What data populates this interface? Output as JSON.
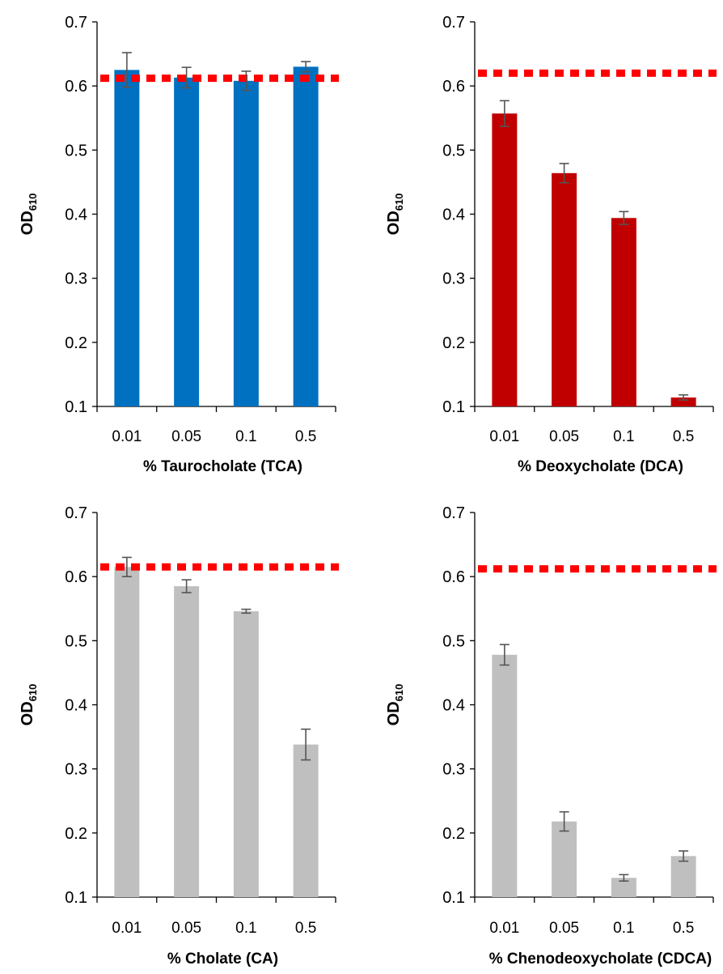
{
  "chart_data": [
    {
      "type": "bar",
      "xlabel": "% Taurocholate (TCA)",
      "ylabel": "OD",
      "ylabel_sub": "610",
      "categories": [
        "0.01",
        "0.05",
        "0.1",
        "0.5"
      ],
      "yticks": [
        "0.1",
        "0.2",
        "0.3",
        "0.4",
        "0.5",
        "0.6",
        "0.7"
      ],
      "ylim": [
        0.1,
        0.7
      ],
      "values": [
        0.625,
        0.613,
        0.608,
        0.63
      ],
      "errors": [
        0.027,
        0.016,
        0.015,
        0.008
      ],
      "reference_line": 0.612,
      "color": "#0070C0",
      "reference_color": "#FF0000"
    },
    {
      "type": "bar",
      "xlabel": "% Deoxycholate (DCA)",
      "ylabel": "OD",
      "ylabel_sub": "610",
      "categories": [
        "0.01",
        "0.05",
        "0.1",
        "0.5"
      ],
      "yticks": [
        "0.1",
        "0.2",
        "0.3",
        "0.4",
        "0.5",
        "0.6",
        "0.7"
      ],
      "ylim": [
        0.1,
        0.7
      ],
      "values": [
        0.557,
        0.464,
        0.394,
        0.114
      ],
      "errors": [
        0.02,
        0.015,
        0.01,
        0.004
      ],
      "reference_line": 0.62,
      "color": "#C00000",
      "reference_color": "#FF0000"
    },
    {
      "type": "bar",
      "xlabel": "% Cholate (CA)",
      "ylabel": "OD",
      "ylabel_sub": "610",
      "categories": [
        "0.01",
        "0.05",
        "0.1",
        "0.5"
      ],
      "yticks": [
        "0.1",
        "0.2",
        "0.3",
        "0.4",
        "0.5",
        "0.6",
        "0.7"
      ],
      "ylim": [
        0.1,
        0.7
      ],
      "values": [
        0.615,
        0.585,
        0.546,
        0.338
      ],
      "errors": [
        0.015,
        0.01,
        0.003,
        0.024
      ],
      "reference_line": 0.615,
      "color": "#BFBFBF",
      "reference_color": "#FF0000"
    },
    {
      "type": "bar",
      "xlabel": "% Chenodeoxycholate (CDCA)",
      "ylabel": "OD",
      "ylabel_sub": "610",
      "categories": [
        "0.01",
        "0.05",
        "0.1",
        "0.5"
      ],
      "yticks": [
        "0.1",
        "0.2",
        "0.3",
        "0.4",
        "0.5",
        "0.6",
        "0.7"
      ],
      "ylim": [
        0.1,
        0.7
      ],
      "values": [
        0.478,
        0.218,
        0.13,
        0.164
      ],
      "errors": [
        0.016,
        0.015,
        0.005,
        0.008
      ],
      "reference_line": 0.612,
      "color": "#BFBFBF",
      "reference_color": "#FF0000"
    }
  ]
}
